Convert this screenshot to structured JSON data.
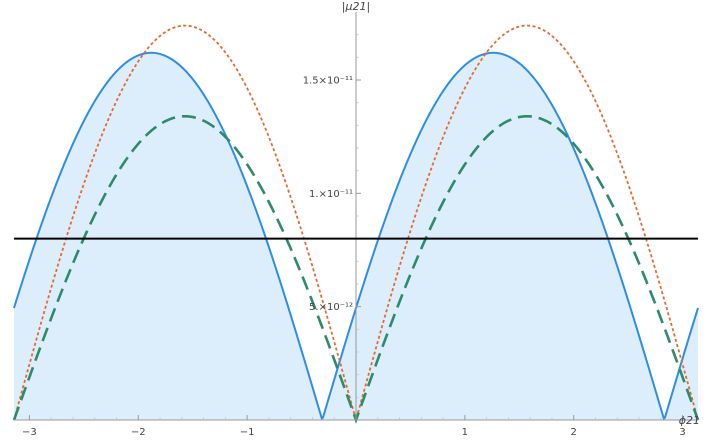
{
  "chart_data": {
    "type": "line",
    "xlabel": "ϕ21",
    "ylabel": "|μ21|",
    "xlim": [
      -3.1416,
      3.1416
    ],
    "ylim": [
      0,
      1.8e-11
    ],
    "grid": false,
    "x_ticks": [
      {
        "value": -3,
        "label": "−3"
      },
      {
        "value": -2,
        "label": "−2"
      },
      {
        "value": -1,
        "label": "−1"
      },
      {
        "value": 1,
        "label": "1"
      },
      {
        "value": 2,
        "label": "2"
      },
      {
        "value": 3,
        "label": "3"
      }
    ],
    "y_ticks": [
      {
        "value": 5e-12,
        "label": "5.×10⁻¹²"
      },
      {
        "value": 1e-11,
        "label": "1.×10⁻¹¹"
      },
      {
        "value": 1.5e-11,
        "label": "1.5×10⁻¹¹"
      }
    ],
    "series": [
      {
        "style": "solid",
        "color": "#2f8de4",
        "fill": "#dcedfb",
        "amplitude": 1.62e-11,
        "phase_shift": -0.31,
        "period": "pi"
      },
      {
        "style": "dotted",
        "color": "#e8692a",
        "amplitude": 1.74e-11,
        "phase_shift": 0.0,
        "period": "pi"
      },
      {
        "style": "dashed",
        "color": "#2e8b6a",
        "amplitude": 1.34e-11,
        "phase_shift": 0.0,
        "period": "pi"
      }
    ],
    "reference_line": {
      "y": 8e-12,
      "color": "#000000"
    }
  }
}
